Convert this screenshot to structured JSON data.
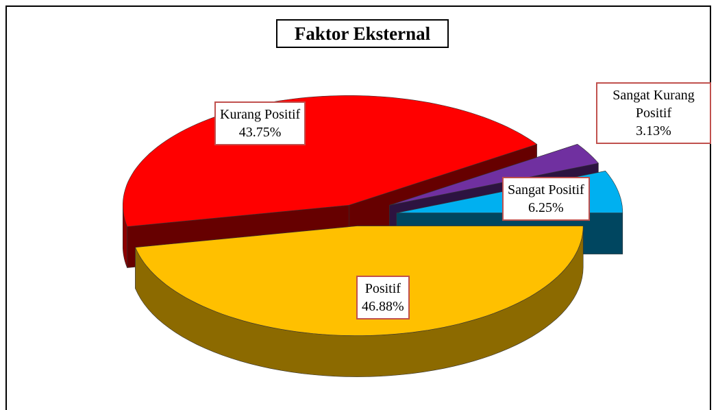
{
  "chart_data": {
    "type": "pie",
    "title": "Faktor Eksternal",
    "categories": [
      "Positif",
      "Kurang Positif",
      "Sangat Kurang Positif",
      "Sangat Positif"
    ],
    "values": [
      46.88,
      43.75,
      3.13,
      6.25
    ],
    "value_labels": [
      "46.88%",
      "43.75%",
      "3.13%",
      "6.25%"
    ],
    "colors": [
      "#FFC000",
      "#FF0000",
      "#7030A0",
      "#00B0F0"
    ]
  }
}
